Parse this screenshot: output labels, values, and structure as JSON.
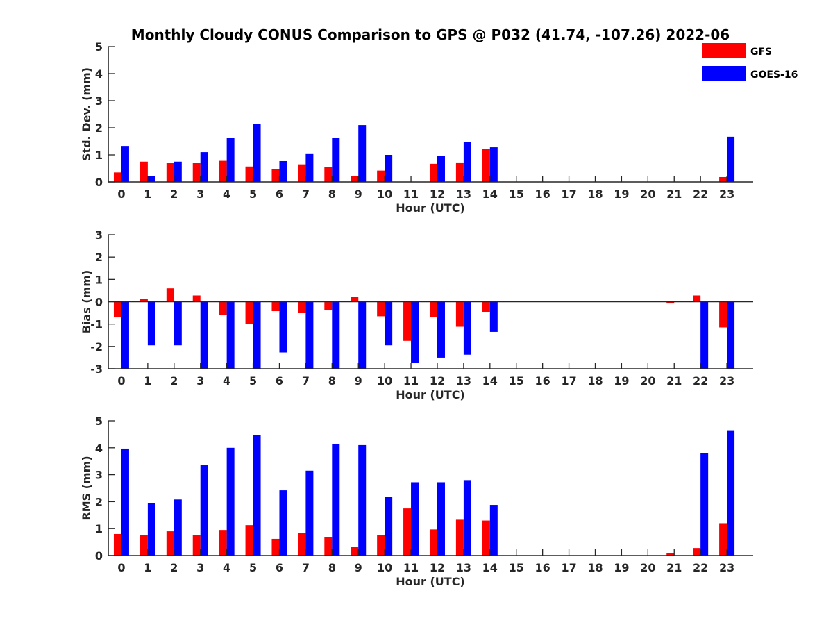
{
  "figure": {
    "title": "Monthly Cloudy CONUS Comparison to GPS @ P032 (41.74, -107.26) 2022-06"
  },
  "legend": {
    "placement": "top-right",
    "items": [
      {
        "label": "GFS",
        "color": "#ff0000"
      },
      {
        "label": "GOES-16",
        "color": "#0000ff"
      }
    ]
  },
  "chart_data": [
    {
      "type": "bar",
      "xlabel": "Hour (UTC)",
      "ylabel": "Std. Dev. (mm)",
      "ylim": [
        0,
        5
      ],
      "yticks": [
        0,
        1,
        2,
        3,
        4,
        5
      ],
      "categories": [
        "0",
        "1",
        "2",
        "3",
        "4",
        "5",
        "6",
        "7",
        "8",
        "9",
        "10",
        "11",
        "12",
        "13",
        "14",
        "15",
        "16",
        "17",
        "18",
        "19",
        "20",
        "21",
        "22",
        "23"
      ],
      "series": [
        {
          "name": "GFS",
          "color": "#ff0000",
          "values": [
            0.35,
            0.75,
            0.7,
            0.7,
            0.78,
            0.57,
            0.47,
            0.65,
            0.55,
            0.23,
            0.42,
            null,
            0.67,
            0.72,
            1.23,
            null,
            null,
            null,
            null,
            null,
            null,
            null,
            null,
            0.18
          ]
        },
        {
          "name": "GOES-16",
          "color": "#0000ff",
          "values": [
            1.33,
            0.23,
            0.75,
            1.1,
            1.62,
            2.15,
            0.77,
            1.03,
            1.62,
            2.1,
            1.0,
            null,
            0.95,
            1.48,
            1.28,
            null,
            null,
            null,
            null,
            null,
            null,
            null,
            null,
            1.67
          ]
        }
      ]
    },
    {
      "type": "bar",
      "xlabel": "Hour (UTC)",
      "ylabel": "Bias (mm)",
      "ylim": [
        -3,
        3
      ],
      "yticks": [
        -3,
        -2,
        -1,
        0,
        1,
        2,
        3
      ],
      "zero_line": true,
      "categories": [
        "0",
        "1",
        "2",
        "3",
        "4",
        "5",
        "6",
        "7",
        "8",
        "9",
        "10",
        "11",
        "12",
        "13",
        "14",
        "15",
        "16",
        "17",
        "18",
        "19",
        "20",
        "21",
        "22",
        "23"
      ],
      "series": [
        {
          "name": "GFS",
          "color": "#ff0000",
          "values": [
            -0.7,
            0.12,
            0.6,
            0.28,
            -0.58,
            -0.98,
            -0.42,
            -0.5,
            -0.37,
            0.22,
            -0.65,
            -1.75,
            -0.7,
            -1.12,
            -0.45,
            null,
            null,
            null,
            null,
            null,
            null,
            -0.08,
            0.28,
            -1.15
          ]
        },
        {
          "name": "GOES-16",
          "color": "#0000ff",
          "values": [
            -3.0,
            -1.95,
            -1.95,
            -3.0,
            -3.0,
            -3.0,
            -2.27,
            -3.0,
            -3.0,
            -3.0,
            -1.95,
            -2.72,
            -2.5,
            -2.37,
            -1.35,
            null,
            null,
            null,
            null,
            null,
            null,
            null,
            -3.0,
            -3.0
          ]
        }
      ]
    },
    {
      "type": "bar",
      "xlabel": "Hour (UTC)",
      "ylabel": "RMS (mm)",
      "ylim": [
        0,
        5
      ],
      "yticks": [
        0,
        1,
        2,
        3,
        4,
        5
      ],
      "categories": [
        "0",
        "1",
        "2",
        "3",
        "4",
        "5",
        "6",
        "7",
        "8",
        "9",
        "10",
        "11",
        "12",
        "13",
        "14",
        "15",
        "16",
        "17",
        "18",
        "19",
        "20",
        "21",
        "22",
        "23"
      ],
      "series": [
        {
          "name": "GFS",
          "color": "#ff0000",
          "values": [
            0.8,
            0.75,
            0.9,
            0.75,
            0.95,
            1.13,
            0.62,
            0.85,
            0.67,
            0.33,
            0.77,
            1.75,
            0.97,
            1.33,
            1.3,
            null,
            null,
            null,
            null,
            null,
            null,
            0.08,
            0.28,
            1.2
          ]
        },
        {
          "name": "GOES-16",
          "color": "#0000ff",
          "values": [
            3.97,
            1.95,
            2.08,
            3.35,
            4.0,
            4.48,
            2.42,
            3.15,
            4.15,
            4.1,
            2.18,
            2.72,
            2.72,
            2.8,
            1.88,
            null,
            null,
            null,
            null,
            null,
            null,
            null,
            3.8,
            4.65
          ]
        }
      ]
    }
  ]
}
